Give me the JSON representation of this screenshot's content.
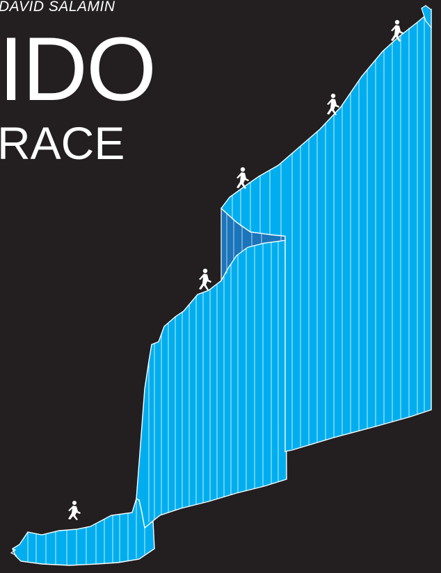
{
  "credit": "DAVID SALAMIN",
  "title": "IDO",
  "subtitle": "RACE",
  "colors": {
    "background": "#231f20",
    "profile_fill": "#00aeef",
    "profile_fill_dark": "#1b75bb",
    "outline": "#ffffff",
    "text": "#ffffff"
  },
  "runners": [
    {
      "icon": "runner-icon"
    },
    {
      "icon": "runner-icon"
    },
    {
      "icon": "runner-icon"
    },
    {
      "icon": "runner-icon"
    },
    {
      "icon": "runner-icon"
    }
  ]
}
